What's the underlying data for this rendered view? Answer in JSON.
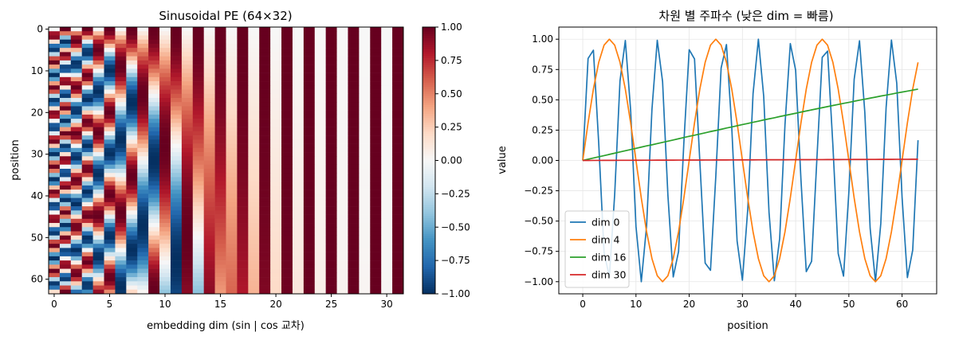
{
  "chart_data": [
    {
      "type": "heatmap",
      "title": "Sinusoidal PE  (64×32)",
      "xlabel": "embedding dim  (sin | cos 교차)",
      "ylabel": "position",
      "rows": 64,
      "cols": 32,
      "x_ticks": [
        "0",
        "5",
        "10",
        "15",
        "20",
        "25",
        "30"
      ],
      "y_ticks": [
        "0",
        "10",
        "20",
        "30",
        "40",
        "50",
        "60"
      ],
      "colormap": "RdBu_r",
      "vmin": -1.0,
      "vmax": 1.0,
      "colorbar_ticks": [
        "1.00",
        "0.75",
        "0.50",
        "0.25",
        "0.00",
        "−0.25",
        "−0.50",
        "−0.75",
        "−1.00"
      ]
    },
    {
      "type": "line",
      "title": "차원 별 주파수 (낮은 dim = 빠름)",
      "xlabel": "position",
      "ylabel": "value",
      "xlim": [
        -4.5,
        66.5
      ],
      "ylim": [
        -1.1,
        1.1
      ],
      "x_ticks": [
        "0",
        "10",
        "20",
        "30",
        "40",
        "50",
        "60"
      ],
      "y_ticks": [
        "1.00",
        "0.75",
        "0.50",
        "0.25",
        "0.00",
        "−0.25",
        "−0.50",
        "−0.75",
        "−1.00"
      ],
      "grid": true,
      "legend_position": "lower-left",
      "x": [
        0,
        1,
        2,
        3,
        4,
        5,
        6,
        7,
        8,
        9,
        10,
        11,
        12,
        13,
        14,
        15,
        16,
        17,
        18,
        19,
        20,
        21,
        22,
        23,
        24,
        25,
        26,
        27,
        28,
        29,
        30,
        31,
        32,
        33,
        34,
        35,
        36,
        37,
        38,
        39,
        40,
        41,
        42,
        43,
        44,
        45,
        46,
        47,
        48,
        49,
        50,
        51,
        52,
        53,
        54,
        55,
        56,
        57,
        58,
        59,
        60,
        61,
        62,
        63
      ],
      "series": [
        {
          "name": "dim 0",
          "color": "#1f77b4",
          "values": [
            0,
            0.841,
            0.909,
            0.141,
            -0.757,
            -0.959,
            -0.279,
            0.657,
            0.989,
            0.412,
            -0.544,
            -1.0,
            -0.537,
            0.42,
            0.991,
            0.65,
            -0.288,
            -0.961,
            -0.751,
            0.15,
            0.913,
            0.837,
            -0.009,
            -0.846,
            -0.906,
            -0.132,
            0.763,
            0.956,
            0.271,
            -0.664,
            -0.988,
            -0.404,
            0.551,
            1.0,
            0.529,
            -0.428,
            -0.992,
            -0.644,
            0.296,
            0.964,
            0.745,
            -0.159,
            -0.917,
            -0.832,
            0.018,
            0.851,
            0.902,
            0.124,
            -0.768,
            -0.954,
            -0.262,
            0.67,
            0.987,
            0.396,
            -0.559,
            -1.0,
            -0.521,
            0.436,
            0.993,
            0.637,
            -0.305,
            -0.966,
            -0.739,
            0.167
          ]
        },
        {
          "name": "dim 4",
          "color": "#ff7f0e",
          "values": [
            0,
            0.31,
            0.589,
            0.809,
            0.951,
            1.0,
            0.951,
            0.809,
            0.588,
            0.309,
            0,
            -0.31,
            -0.589,
            -0.809,
            -0.951,
            -1.0,
            -0.951,
            -0.809,
            -0.588,
            -0.309,
            0,
            0.31,
            0.589,
            0.809,
            0.951,
            1.0,
            0.951,
            0.809,
            0.588,
            0.309,
            0,
            -0.31,
            -0.589,
            -0.809,
            -0.951,
            -1.0,
            -0.951,
            -0.809,
            -0.588,
            -0.309,
            0,
            0.31,
            0.589,
            0.809,
            0.951,
            1.0,
            0.951,
            0.809,
            0.588,
            0.309,
            0,
            -0.31,
            -0.589,
            -0.809,
            -0.951,
            -1.0,
            -0.951,
            -0.809,
            -0.588,
            -0.309,
            0,
            0.31,
            0.589,
            0.809
          ]
        },
        {
          "name": "dim 16",
          "color": "#2ca02c",
          "values": [
            0,
            0.01,
            0.02,
            0.03,
            0.04,
            0.05,
            0.06,
            0.07,
            0.08,
            0.09,
            0.1,
            0.11,
            0.12,
            0.129,
            0.139,
            0.149,
            0.159,
            0.169,
            0.179,
            0.189,
            0.199,
            0.208,
            0.218,
            0.228,
            0.238,
            0.247,
            0.257,
            0.267,
            0.276,
            0.286,
            0.296,
            0.305,
            0.315,
            0.324,
            0.334,
            0.343,
            0.352,
            0.362,
            0.371,
            0.38,
            0.389,
            0.399,
            0.408,
            0.417,
            0.426,
            0.435,
            0.444,
            0.453,
            0.462,
            0.471,
            0.479,
            0.488,
            0.497,
            0.505,
            0.514,
            0.522,
            0.531,
            0.539,
            0.547,
            0.556,
            0.564,
            0.572,
            0.58,
            0.588
          ]
        },
        {
          "name": "dim 30",
          "color": "#d62728",
          "values": [
            0,
            0.0002,
            0.0003,
            0.0005,
            0.0006,
            0.0008,
            0.0009,
            0.0011,
            0.0013,
            0.0014,
            0.0016,
            0.0017,
            0.0019,
            0.0021,
            0.0022,
            0.0024,
            0.0025,
            0.0027,
            0.0028,
            0.003,
            0.0032,
            0.0033,
            0.0035,
            0.0036,
            0.0038,
            0.004,
            0.0041,
            0.0043,
            0.0044,
            0.0046,
            0.0047,
            0.0049,
            0.0051,
            0.0052,
            0.0054,
            0.0055,
            0.0057,
            0.0058,
            0.006,
            0.0062,
            0.0063,
            0.0065,
            0.0066,
            0.0068,
            0.007,
            0.0071,
            0.0073,
            0.0074,
            0.0076,
            0.0077,
            0.0079,
            0.0081,
            0.0082,
            0.0084,
            0.0085,
            0.0087,
            0.0089,
            0.009,
            0.0092,
            0.0093,
            0.0095,
            0.0096,
            0.0098,
            0.01
          ]
        }
      ]
    }
  ]
}
